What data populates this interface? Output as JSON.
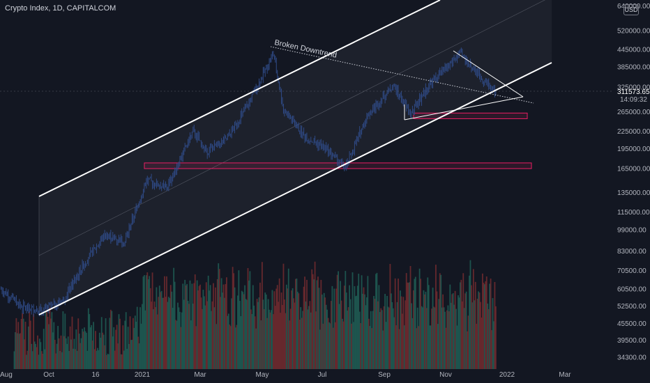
{
  "header": {
    "title": "Crypto Index, 1D, CAPITALCOM",
    "currency": "USD"
  },
  "price_readout": {
    "price": "311573.65",
    "countdown": "14:09:32"
  },
  "colors": {
    "background": "#131722",
    "candle": "#2f4a86",
    "channel_line": "#ffffff",
    "support_zone": "#e91e63",
    "volume_up": "#1f5a52",
    "volume_down": "#6e2a2f",
    "axis_text": "#b2b5be"
  },
  "chart_data": {
    "type": "candlestick",
    "title": "Crypto Index, 1D, CAPITALCOM",
    "yscale": "log",
    "y_ticks": [
      "640000.00",
      "520000.00",
      "445000.00",
      "385000.00",
      "325000.00",
      "265000.00",
      "225000.00",
      "195000.00",
      "165000.00",
      "135000.00",
      "115000.00",
      "99000.00",
      "83000.00",
      "70500.00",
      "60500.00",
      "52500.00",
      "45500.00",
      "39500.00",
      "34300.00"
    ],
    "x_ticks": [
      "Aug",
      "Oct",
      "16",
      "2021",
      "Mar",
      "May",
      "Jul",
      "Sep",
      "Nov",
      "2022",
      "Mar"
    ],
    "current_price": 311573.65,
    "annotations": [
      {
        "text": "Broken Downtrend",
        "type": "dotted-line"
      }
    ],
    "support_zones": [
      [
        165000,
        173000
      ],
      [
        250000,
        262000
      ]
    ],
    "price_path": [
      [
        "2020-08-15",
        60500
      ],
      [
        "2020-09-05",
        52000
      ],
      [
        "2020-09-25",
        50500
      ],
      [
        "2020-10-15",
        55000
      ],
      [
        "2020-11-05",
        75000
      ],
      [
        "2020-11-25",
        95000
      ],
      [
        "2020-12-15",
        90000
      ],
      [
        "2021-01-05",
        150000
      ],
      [
        "2021-01-25",
        140000
      ],
      [
        "2021-02-20",
        225000
      ],
      [
        "2021-03-05",
        190000
      ],
      [
        "2021-03-25",
        210000
      ],
      [
        "2021-04-15",
        280000
      ],
      [
        "2021-05-10",
        430000
      ],
      [
        "2021-05-20",
        270000
      ],
      [
        "2021-06-10",
        215000
      ],
      [
        "2021-07-01",
        195000
      ],
      [
        "2021-07-20",
        165000
      ],
      [
        "2021-08-10",
        255000
      ],
      [
        "2021-09-05",
        330000
      ],
      [
        "2021-09-22",
        260000
      ],
      [
        "2021-10-10",
        330000
      ],
      [
        "2021-11-10",
        430000
      ],
      [
        "2021-11-30",
        355000
      ],
      [
        "2021-12-15",
        311573
      ]
    ]
  }
}
